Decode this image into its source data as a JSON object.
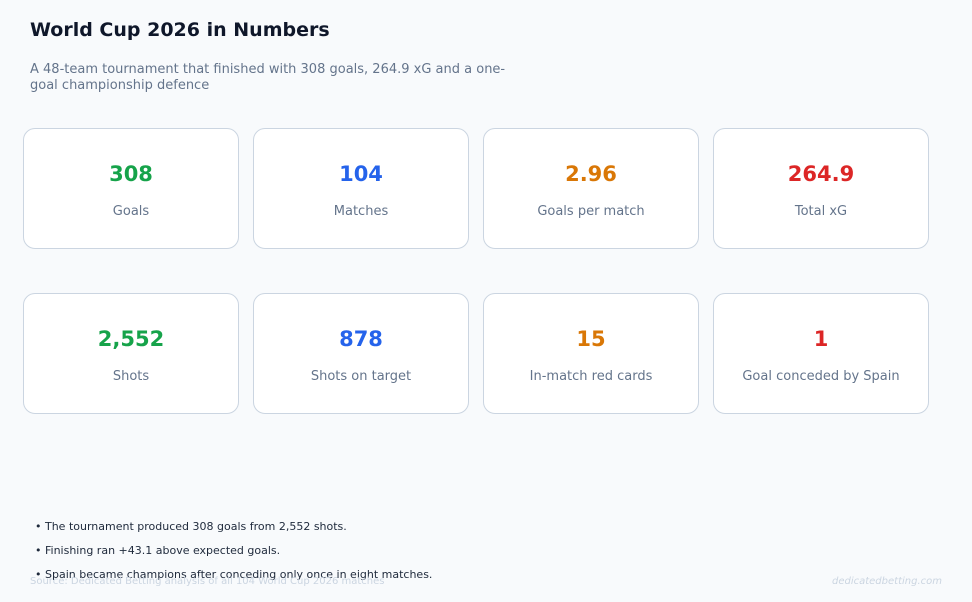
{
  "title": "World Cup 2026 in Numbers",
  "subtitle": "A 48-team tournament that finished with 308 goals, 264.9 xG and a one-goal championship defence",
  "colors": {
    "green": "#16a34a",
    "blue": "#2563eb",
    "orange": "#d97706",
    "red": "#dc2626"
  },
  "cards": [
    {
      "value": "308",
      "label": "Goals",
      "color": "#16a34a"
    },
    {
      "value": "104",
      "label": "Matches",
      "color": "#2563eb"
    },
    {
      "value": "2.96",
      "label": "Goals per match",
      "color": "#d97706"
    },
    {
      "value": "264.9",
      "label": "Total xG",
      "color": "#dc2626"
    },
    {
      "value": "2,552",
      "label": "Shots",
      "color": "#16a34a"
    },
    {
      "value": "878",
      "label": "Shots on target",
      "color": "#2563eb"
    },
    {
      "value": "15",
      "label": "In-match red cards",
      "color": "#d97706"
    },
    {
      "value": "1",
      "label": "Goal conceded by Spain",
      "color": "#dc2626"
    }
  ],
  "notes": [
    "• The tournament produced 308 goals from 2,552 shots.",
    "• Finishing ran +43.1 above expected goals.",
    "• Spain became champions after conceding only once in eight matches."
  ],
  "source": "Source: Dedicated Betting analysis of all 104 World Cup 2026 matches",
  "watermark": "dedicatedbetting.com"
}
